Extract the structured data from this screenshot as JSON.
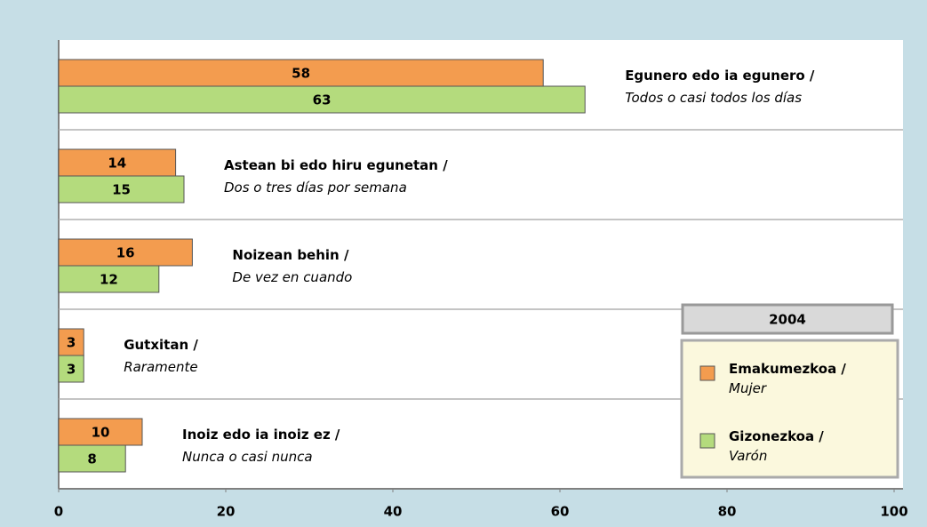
{
  "chart_data": {
    "type": "bar",
    "orientation": "horizontal",
    "categories": [
      "Egunero edo ia egunero /\nTodos o casi todos los días",
      "Astean bi edo hiru egunetan /\nDos o tres días por semana",
      "Noizean behin /\nDe vez en cuando",
      "Gutxitan /\nRaramente",
      "Inoiz edo ia inoiz ez /\nNunca o casi nunca"
    ],
    "series": [
      {
        "name": "Emakumezkoa /\nMujer",
        "color": "#f39c4f",
        "values": [
          58,
          14,
          16,
          3,
          10
        ]
      },
      {
        "name": "Gizonezkoa /\nVarón",
        "color": "#b4db7d",
        "values": [
          63,
          15,
          12,
          3,
          8
        ]
      }
    ],
    "xlim": [
      0,
      100
    ],
    "xticks": [
      0,
      20,
      40,
      60,
      80,
      100
    ],
    "legend_title": "2004",
    "legend": "lower right"
  }
}
